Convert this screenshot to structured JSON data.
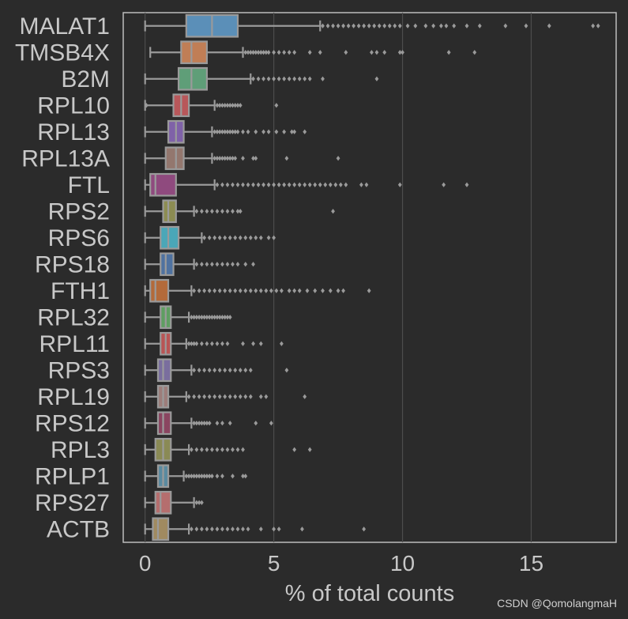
{
  "chart_data": {
    "type": "box",
    "orientation": "horizontal",
    "title": "",
    "xlabel": "% of total counts",
    "ylabel": "",
    "xlim": [
      -0.85,
      18.3
    ],
    "xticks": [
      0,
      5,
      10,
      15
    ],
    "grid": "vertical",
    "series": [
      {
        "name": "MALAT1",
        "color": "#5b8fb8",
        "whisker_low": 0.0,
        "q1": 1.6,
        "median": 2.6,
        "q3": 3.6,
        "whisker_high": 6.8,
        "outliers": [
          6.9,
          7.1,
          7.3,
          7.5,
          7.7,
          7.9,
          8.1,
          8.3,
          8.5,
          8.7,
          8.9,
          9.1,
          9.3,
          9.5,
          9.7,
          9.9,
          10.2,
          10.5,
          10.9,
          11.2,
          11.5,
          11.7,
          12.0,
          12.5,
          13.0,
          14.0,
          14.8,
          15.7,
          17.4,
          17.6
        ]
      },
      {
        "name": "TMSB4X",
        "color": "#c07e56",
        "whisker_low": 0.2,
        "q1": 1.4,
        "median": 1.8,
        "q3": 2.4,
        "whisker_high": 3.8,
        "outliers": [
          3.9,
          4.0,
          4.1,
          4.2,
          4.3,
          4.4,
          4.5,
          4.6,
          4.7,
          4.8,
          5.0,
          5.2,
          5.4,
          5.6,
          5.8,
          6.4,
          6.8,
          7.8,
          8.8,
          9.0,
          9.3,
          9.9,
          10.0,
          11.8,
          12.8
        ]
      },
      {
        "name": "B2M",
        "color": "#5f9e78",
        "whisker_low": 0.0,
        "q1": 1.3,
        "median": 1.8,
        "q3": 2.4,
        "whisker_high": 4.1,
        "outliers": [
          4.2,
          4.4,
          4.6,
          4.8,
          5.0,
          5.2,
          5.4,
          5.6,
          5.8,
          6.0,
          6.2,
          6.4,
          6.9,
          9.0
        ]
      },
      {
        "name": "RPL10",
        "color": "#b8575a",
        "whisker_low": 0.0,
        "q1": 1.1,
        "median": 1.4,
        "q3": 1.7,
        "whisker_high": 2.7,
        "outliers": [
          2.8,
          2.9,
          3.0,
          3.1,
          3.2,
          3.3,
          3.4,
          3.5,
          3.6,
          3.7,
          5.1,
          0.05
        ]
      },
      {
        "name": "RPL13",
        "color": "#7f62a8",
        "whisker_low": 0.0,
        "q1": 0.9,
        "median": 1.2,
        "q3": 1.5,
        "whisker_high": 2.6,
        "outliers": [
          2.7,
          2.8,
          2.9,
          3.0,
          3.1,
          3.2,
          3.3,
          3.4,
          3.5,
          3.6,
          3.8,
          4.0,
          4.3,
          4.6,
          4.8,
          5.1,
          5.4,
          5.7,
          5.8,
          6.2
        ]
      },
      {
        "name": "RPL13A",
        "color": "#93776e",
        "whisker_low": 0.0,
        "q1": 0.8,
        "median": 1.2,
        "q3": 1.5,
        "whisker_high": 2.6,
        "outliers": [
          2.7,
          2.8,
          2.9,
          3.0,
          3.1,
          3.2,
          3.3,
          3.4,
          3.5,
          3.8,
          4.2,
          4.3,
          5.5,
          7.5
        ]
      },
      {
        "name": "FTL",
        "color": "#8f4a7e",
        "whisker_low": 0.0,
        "q1": 0.2,
        "median": 0.4,
        "q3": 1.2,
        "whisker_high": 2.7,
        "outliers": [
          2.8,
          3.0,
          3.2,
          3.4,
          3.6,
          3.8,
          4.0,
          4.2,
          4.4,
          4.6,
          4.8,
          5.0,
          5.2,
          5.4,
          5.6,
          5.8,
          6.0,
          6.2,
          6.4,
          6.6,
          6.8,
          7.0,
          7.2,
          7.4,
          7.6,
          7.8,
          8.4,
          8.6,
          9.9,
          11.6,
          12.5
        ]
      },
      {
        "name": "RPS2",
        "color": "#8c8c52",
        "whisker_low": 0.0,
        "q1": 0.7,
        "median": 0.9,
        "q3": 1.2,
        "whisker_high": 1.9,
        "outliers": [
          2.0,
          2.2,
          2.4,
          2.6,
          2.8,
          3.0,
          3.2,
          3.4,
          3.6,
          3.7,
          7.3
        ]
      },
      {
        "name": "RPS6",
        "color": "#4aa7b8",
        "whisker_low": 0.0,
        "q1": 0.6,
        "median": 0.9,
        "q3": 1.3,
        "whisker_high": 2.2,
        "outliers": [
          2.3,
          2.5,
          2.7,
          2.9,
          3.1,
          3.3,
          3.5,
          3.7,
          3.9,
          4.1,
          4.3,
          4.5,
          4.8,
          5.0
        ]
      },
      {
        "name": "RPS18",
        "color": "#4f72a0",
        "whisker_low": 0.0,
        "q1": 0.6,
        "median": 0.8,
        "q3": 1.1,
        "whisker_high": 1.9,
        "outliers": [
          2.0,
          2.2,
          2.4,
          2.6,
          2.8,
          3.0,
          3.2,
          3.4,
          3.6,
          3.9,
          4.2
        ]
      },
      {
        "name": "FTH1",
        "color": "#b36a3a",
        "whisker_low": 0.0,
        "q1": 0.2,
        "median": 0.4,
        "q3": 0.9,
        "whisker_high": 1.8,
        "outliers": [
          1.9,
          2.1,
          2.3,
          2.5,
          2.7,
          2.9,
          3.1,
          3.3,
          3.5,
          3.7,
          3.9,
          4.1,
          4.3,
          4.5,
          4.7,
          4.9,
          5.1,
          5.3,
          5.6,
          5.8,
          6.0,
          6.3,
          6.6,
          6.9,
          7.2,
          7.5,
          7.7,
          8.7
        ]
      },
      {
        "name": "RPL32",
        "color": "#5f9e62",
        "whisker_low": 0.0,
        "q1": 0.6,
        "median": 0.8,
        "q3": 1.0,
        "whisker_high": 1.7,
        "outliers": [
          1.8,
          1.9,
          2.0,
          2.1,
          2.2,
          2.3,
          2.4,
          2.5,
          2.6,
          2.7,
          2.8,
          2.9,
          3.0,
          3.1,
          3.2,
          3.3
        ]
      },
      {
        "name": "RPL11",
        "color": "#b85555",
        "whisker_low": 0.0,
        "q1": 0.6,
        "median": 0.8,
        "q3": 1.0,
        "whisker_high": 1.6,
        "outliers": [
          1.7,
          1.8,
          1.9,
          2.0,
          2.2,
          2.4,
          2.6,
          2.8,
          3.0,
          3.2,
          3.8,
          4.2,
          4.5,
          5.3
        ]
      },
      {
        "name": "RPS3",
        "color": "#7a6e9e",
        "whisker_low": 0.0,
        "q1": 0.5,
        "median": 0.7,
        "q3": 1.0,
        "whisker_high": 1.8,
        "outliers": [
          1.9,
          2.1,
          2.3,
          2.5,
          2.7,
          2.9,
          3.1,
          3.3,
          3.5,
          3.7,
          3.9,
          4.1,
          5.5
        ]
      },
      {
        "name": "RPL19",
        "color": "#9c7d7a",
        "whisker_low": 0.0,
        "q1": 0.5,
        "median": 0.7,
        "q3": 0.9,
        "whisker_high": 1.6,
        "outliers": [
          1.7,
          1.9,
          2.1,
          2.3,
          2.5,
          2.7,
          2.9,
          3.1,
          3.3,
          3.5,
          3.7,
          3.9,
          4.1,
          4.5,
          4.7,
          6.2
        ]
      },
      {
        "name": "RPS12",
        "color": "#8a4560",
        "whisker_low": 0.0,
        "q1": 0.5,
        "median": 0.7,
        "q3": 1.0,
        "whisker_high": 1.8,
        "outliers": [
          1.9,
          2.0,
          2.1,
          2.2,
          2.3,
          2.4,
          2.5,
          2.8,
          3.0,
          3.3,
          4.3,
          4.9
        ]
      },
      {
        "name": "RPL3",
        "color": "#8a8a55",
        "whisker_low": 0.0,
        "q1": 0.4,
        "median": 0.7,
        "q3": 1.0,
        "whisker_high": 1.7,
        "outliers": [
          1.8,
          2.0,
          2.2,
          2.4,
          2.6,
          2.8,
          3.0,
          3.2,
          3.4,
          3.6,
          3.8,
          5.8,
          6.4
        ]
      },
      {
        "name": "RPLP1",
        "color": "#5a8aa0",
        "whisker_low": 0.0,
        "q1": 0.5,
        "median": 0.7,
        "q3": 0.9,
        "whisker_high": 1.5,
        "outliers": [
          1.6,
          1.7,
          1.8,
          1.9,
          2.0,
          2.1,
          2.2,
          2.3,
          2.4,
          2.5,
          2.6,
          2.8,
          3.0,
          3.4,
          3.8,
          3.9
        ]
      },
      {
        "name": "RPS27",
        "color": "#b56e6e",
        "whisker_low": 0.0,
        "q1": 0.4,
        "median": 0.6,
        "q3": 1.0,
        "whisker_high": 1.9,
        "outliers": [
          2.0,
          2.1,
          2.2
        ]
      },
      {
        "name": "ACTB",
        "color": "#a08a60",
        "whisker_low": 0.0,
        "q1": 0.3,
        "median": 0.5,
        "q3": 0.9,
        "whisker_high": 1.7,
        "outliers": [
          1.8,
          2.0,
          2.2,
          2.4,
          2.6,
          2.8,
          3.0,
          3.2,
          3.4,
          3.6,
          3.8,
          4.0,
          4.5,
          5.0,
          5.2,
          6.1,
          8.5
        ]
      }
    ]
  },
  "watermark": "CSDN @QomolangmaH"
}
